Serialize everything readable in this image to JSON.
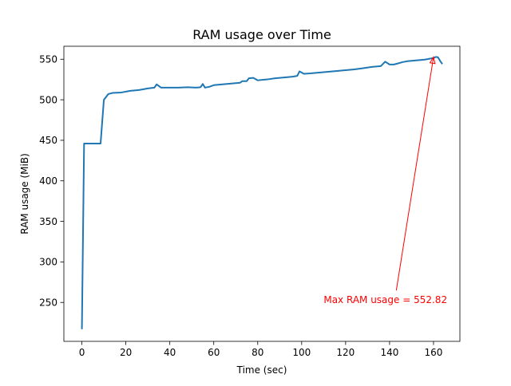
{
  "chart_data": {
    "type": "line",
    "title": "RAM usage over Time",
    "xlabel": "Time (sec)",
    "ylabel": "RAM usage (MiB)",
    "xlim": [
      -8.2,
      172
    ],
    "ylim": [
      202,
      566
    ],
    "xticks": [
      0,
      20,
      40,
      60,
      80,
      100,
      120,
      140,
      160
    ],
    "xtick_labels": [
      "0",
      "20",
      "40",
      "60",
      "80",
      "100",
      "120",
      "140",
      "160"
    ],
    "yticks": [
      250,
      300,
      350,
      400,
      450,
      500,
      550
    ],
    "ytick_labels": [
      "250",
      "300",
      "350",
      "400",
      "450",
      "500",
      "550"
    ],
    "grid": false,
    "series": [
      {
        "color": "#1f77b4",
        "points": [
          [
            0,
            217
          ],
          [
            1,
            446
          ],
          [
            8.5,
            446
          ],
          [
            10,
            500
          ],
          [
            12,
            507
          ],
          [
            14,
            508.5
          ],
          [
            18,
            509
          ],
          [
            22,
            511
          ],
          [
            26,
            512
          ],
          [
            30,
            514
          ],
          [
            33,
            515
          ],
          [
            34,
            519
          ],
          [
            36,
            515
          ],
          [
            40,
            515
          ],
          [
            44,
            515
          ],
          [
            48,
            515.5
          ],
          [
            52,
            515
          ],
          [
            54,
            515.5
          ],
          [
            55,
            519.5
          ],
          [
            56,
            515
          ],
          [
            58,
            516
          ],
          [
            60,
            518
          ],
          [
            64,
            519
          ],
          [
            68,
            520
          ],
          [
            72,
            521
          ],
          [
            73,
            523
          ],
          [
            75,
            523
          ],
          [
            76,
            526.5
          ],
          [
            78,
            527
          ],
          [
            80,
            524
          ],
          [
            84,
            525
          ],
          [
            88,
            526.5
          ],
          [
            92,
            527.5
          ],
          [
            96,
            528.5
          ],
          [
            98,
            529.5
          ],
          [
            99,
            535
          ],
          [
            101,
            532
          ],
          [
            104,
            532.5
          ],
          [
            108,
            533.5
          ],
          [
            112,
            534.5
          ],
          [
            116,
            535.5
          ],
          [
            120,
            536.5
          ],
          [
            124,
            537.5
          ],
          [
            128,
            539
          ],
          [
            132,
            540.5
          ],
          [
            136,
            541.5
          ],
          [
            138,
            547
          ],
          [
            140,
            543.5
          ],
          [
            142,
            543.5
          ],
          [
            144,
            545
          ],
          [
            146,
            546.5
          ],
          [
            148,
            547.5
          ],
          [
            150,
            548
          ],
          [
            152,
            548.5
          ],
          [
            154,
            549
          ],
          [
            156,
            549.5
          ],
          [
            158,
            550.5
          ],
          [
            160,
            551.5
          ],
          [
            161,
            552.8
          ],
          [
            162,
            552.5
          ],
          [
            163,
            548
          ],
          [
            164,
            544
          ]
        ]
      }
    ],
    "annotation": {
      "text": "Max RAM usage = 552.82",
      "color": "#ff0000",
      "point": [
        160,
        552.82
      ],
      "text_anchor": [
        110,
        253
      ]
    }
  }
}
